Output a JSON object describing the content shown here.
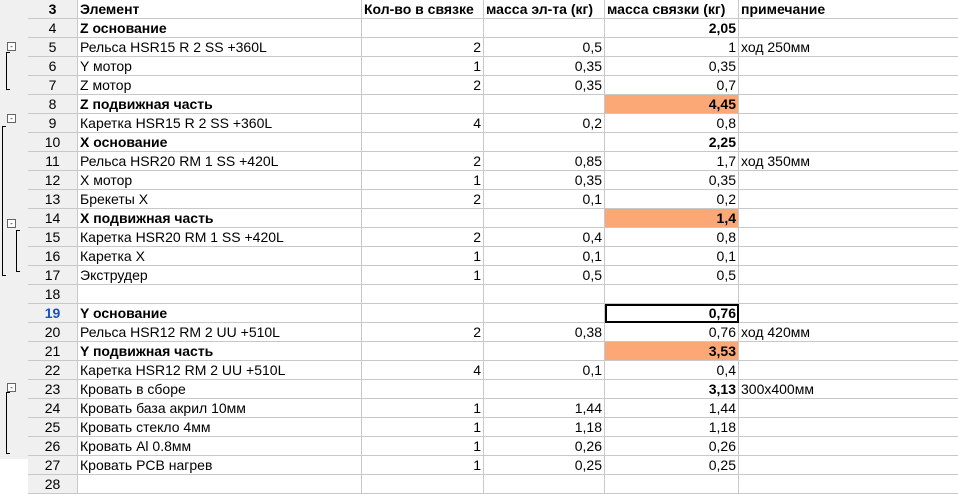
{
  "headers": {
    "row": "3",
    "element": "Элемент",
    "count": "Кол-во в связке",
    "unit_mass": "масса эл-та (кг)",
    "bundle_mass": "масса связки (кг)",
    "note": "примечание"
  },
  "rows": [
    {
      "n": "4",
      "element": "Z основание",
      "count": "",
      "unit_mass": "",
      "bundle_mass": "2,05",
      "note": "",
      "bold": true,
      "highlight": false
    },
    {
      "n": "5",
      "element": "Рельса HSR15 R 2 SS +360L",
      "count": "2",
      "unit_mass": "0,5",
      "bundle_mass": "1",
      "note": "ход 250мм",
      "bold": false,
      "highlight": false
    },
    {
      "n": "6",
      "element": "Y мотор",
      "count": "1",
      "unit_mass": "0,35",
      "bundle_mass": "0,35",
      "note": "",
      "bold": false,
      "highlight": false
    },
    {
      "n": "7",
      "element": "Z мотор",
      "count": "2",
      "unit_mass": "0,35",
      "bundle_mass": "0,7",
      "note": "",
      "bold": false,
      "highlight": false
    },
    {
      "n": "8",
      "element": "Z подвижная часть",
      "count": "",
      "unit_mass": "",
      "bundle_mass": "4,45",
      "note": "",
      "bold": true,
      "highlight": true
    },
    {
      "n": "9",
      "element": "Каретка HSR15 R 2 SS +360L",
      "count": "4",
      "unit_mass": "0,2",
      "bundle_mass": "0,8",
      "note": "",
      "bold": false,
      "highlight": false
    },
    {
      "n": "10",
      "element": "X основание",
      "count": "",
      "unit_mass": "",
      "bundle_mass": "2,25",
      "note": "",
      "bold": true,
      "highlight": false
    },
    {
      "n": "11",
      "element": "Рельса HSR20 RM 1 SS +420L",
      "count": "2",
      "unit_mass": "0,85",
      "bundle_mass": "1,7",
      "note": "ход 350мм",
      "bold": false,
      "highlight": false
    },
    {
      "n": "12",
      "element": "X мотор",
      "count": "1",
      "unit_mass": "0,35",
      "bundle_mass": "0,35",
      "note": "",
      "bold": false,
      "highlight": false
    },
    {
      "n": "13",
      "element": "Брекеты X",
      "count": "2",
      "unit_mass": "0,1",
      "bundle_mass": "0,2",
      "note": "",
      "bold": false,
      "highlight": false
    },
    {
      "n": "14",
      "element": "X подвижная часть",
      "count": "",
      "unit_mass": "",
      "bundle_mass": "1,4",
      "note": "",
      "bold": true,
      "highlight": true
    },
    {
      "n": "15",
      "element": "Каретка HSR20 RM 1 SS +420L",
      "count": "2",
      "unit_mass": "0,4",
      "bundle_mass": "0,8",
      "note": "",
      "bold": false,
      "highlight": false
    },
    {
      "n": "16",
      "element": "Каретка X",
      "count": "1",
      "unit_mass": "0,1",
      "bundle_mass": "0,1",
      "note": "",
      "bold": false,
      "highlight": false
    },
    {
      "n": "17",
      "element": "Экструдер",
      "count": "1",
      "unit_mass": "0,5",
      "bundle_mass": "0,5",
      "note": "",
      "bold": false,
      "highlight": false
    },
    {
      "n": "18",
      "element": "",
      "count": "",
      "unit_mass": "",
      "bundle_mass": "",
      "note": "",
      "bold": false,
      "highlight": false
    },
    {
      "n": "19",
      "element": "Y основание",
      "count": "",
      "unit_mass": "",
      "bundle_mass": "0,76",
      "note": "",
      "bold": true,
      "highlight": false,
      "selected": true
    },
    {
      "n": "20",
      "element": "Рельса HSR12 RM 2 UU +510L",
      "count": "2",
      "unit_mass": "0,38",
      "bundle_mass": "0,76",
      "note": "ход 420мм",
      "bold": false,
      "highlight": false
    },
    {
      "n": "21",
      "element": "Y подвижная часть",
      "count": "",
      "unit_mass": "",
      "bundle_mass": "3,53",
      "note": "",
      "bold": true,
      "highlight": true
    },
    {
      "n": "22",
      "element": "Каретка HSR12 RM 2 UU +510L",
      "count": "4",
      "unit_mass": "0,1",
      "bundle_mass": "0,4",
      "note": "",
      "bold": false,
      "highlight": false
    },
    {
      "n": "23",
      "element": "Кровать в сборе",
      "count": "",
      "unit_mass": "",
      "bundle_mass": "3,13",
      "note": "300x400мм",
      "bold": false,
      "highlight": false,
      "bold_mass": true
    },
    {
      "n": "24",
      "element": "Кровать база акрил 10мм",
      "count": "1",
      "unit_mass": "1,44",
      "bundle_mass": "1,44",
      "note": "",
      "bold": false,
      "highlight": false
    },
    {
      "n": "25",
      "element": "Кровать стекло 4мм",
      "count": "1",
      "unit_mass": "1,18",
      "bundle_mass": "1,18",
      "note": "",
      "bold": false,
      "highlight": false
    },
    {
      "n": "26",
      "element": "Кровать Al 0.8мм",
      "count": "1",
      "unit_mass": "0,26",
      "bundle_mass": "0,26",
      "note": "",
      "bold": false,
      "highlight": false
    },
    {
      "n": "27",
      "element": "Кровать PCB нагрев",
      "count": "1",
      "unit_mass": "0,25",
      "bundle_mass": "0,25",
      "note": "",
      "bold": false,
      "highlight": false
    },
    {
      "n": "28",
      "element": "",
      "count": "",
      "unit_mass": "",
      "bundle_mass": "",
      "note": "",
      "bold": false,
      "highlight": false
    }
  ],
  "outline_button_label": "-",
  "colors": {
    "highlight": "#fba876",
    "selection_border": "#000000",
    "active_row_header": "#1a4fc7"
  }
}
